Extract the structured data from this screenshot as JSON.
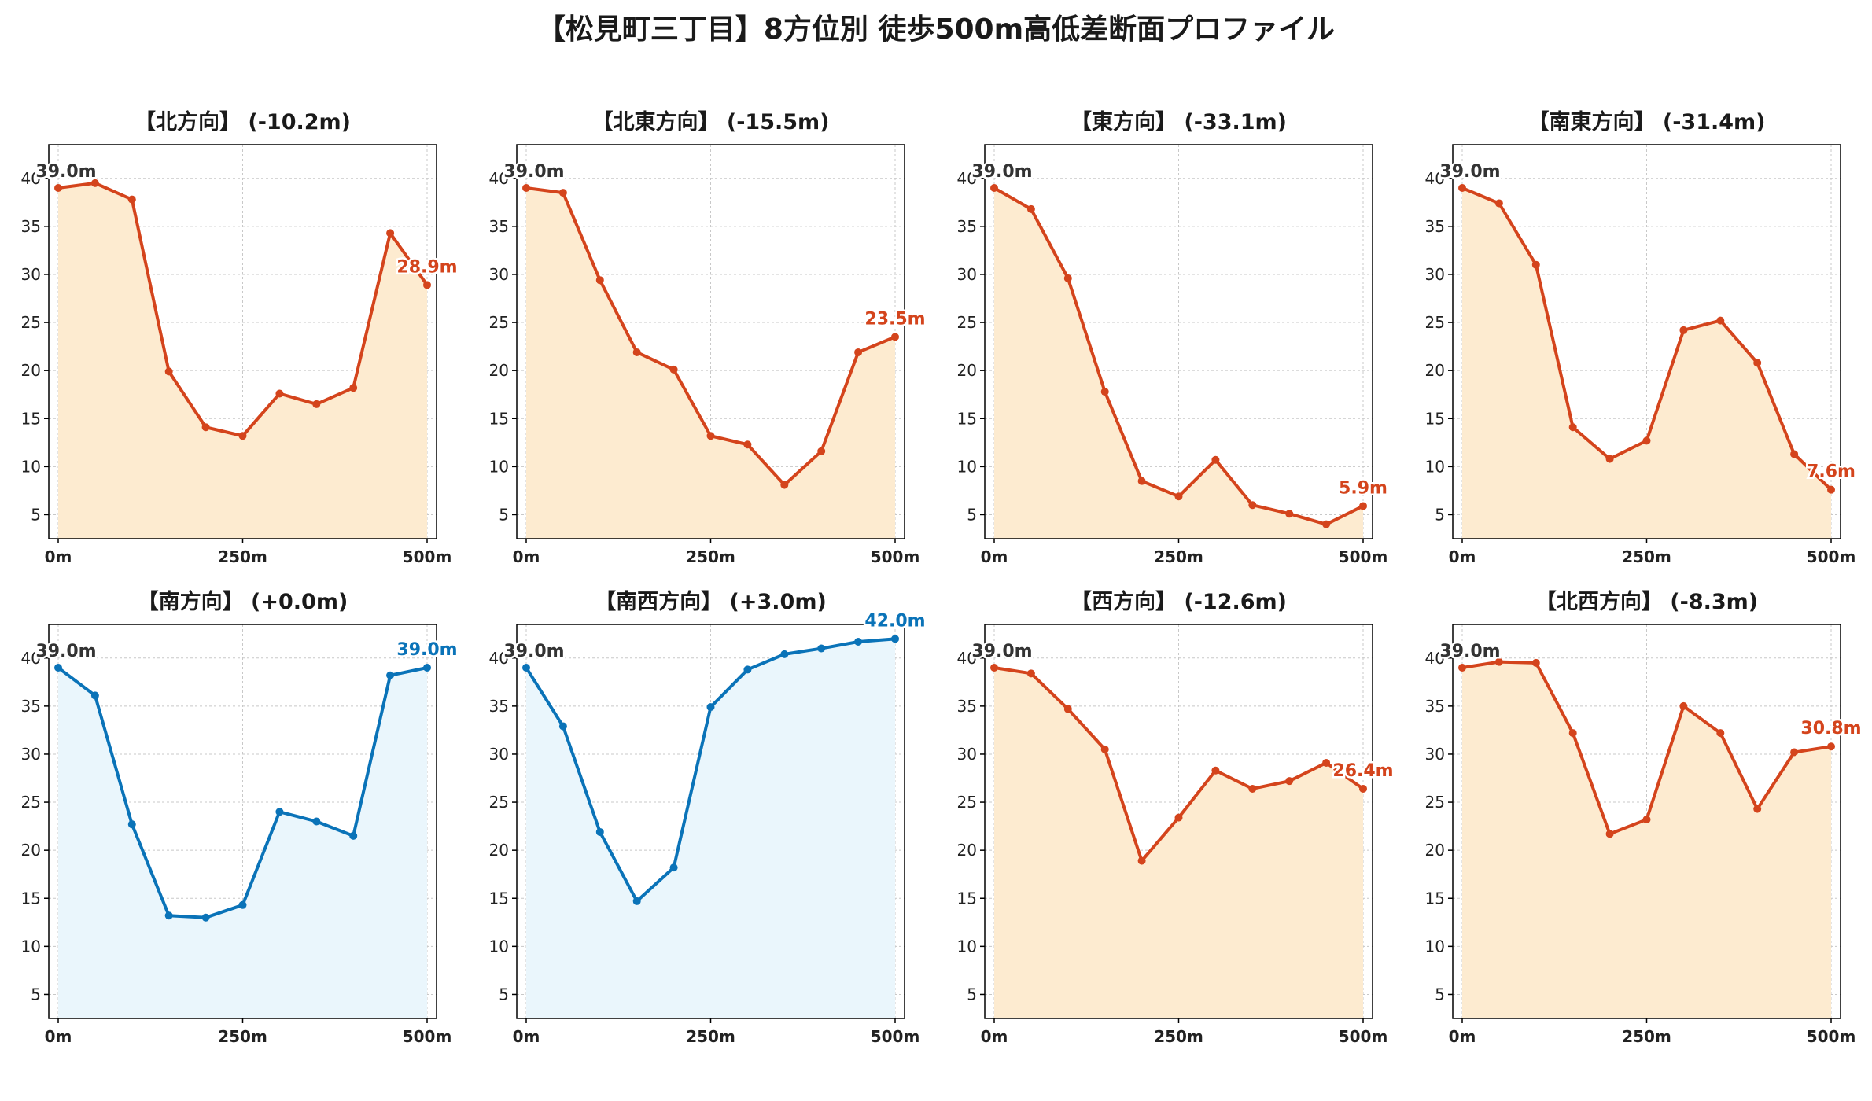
{
  "title": "【松見町三丁目】8方位別 徒歩500m高低差断面プロファイル",
  "colors": {
    "down_line": "#d4441c",
    "down_fill": "#fdebd0",
    "up_line": "#0a73b8",
    "up_fill": "#eaf6fc",
    "start_label": "#333333",
    "grid": "#c8c8c8"
  },
  "chart_data": [
    {
      "type": "line",
      "title": "【北方向】 (-10.2m)",
      "trend": "down",
      "x": [
        0,
        50,
        100,
        150,
        200,
        250,
        300,
        350,
        400,
        450,
        500
      ],
      "y": [
        39.0,
        39.5,
        37.8,
        19.9,
        14.1,
        13.2,
        17.6,
        16.5,
        18.2,
        34.3,
        28.9
      ],
      "xticks": [
        "0m",
        "250m",
        "500m"
      ],
      "yticks": [
        5,
        10,
        15,
        20,
        25,
        30,
        35,
        40
      ],
      "ylim": [
        2.5,
        43.5
      ],
      "start_label": "39.0m",
      "end_label": "28.9m",
      "grid": true
    },
    {
      "type": "line",
      "title": "【北東方向】 (-15.5m)",
      "trend": "down",
      "x": [
        0,
        50,
        100,
        150,
        200,
        250,
        300,
        350,
        400,
        450,
        500
      ],
      "y": [
        39.0,
        38.5,
        29.4,
        21.9,
        20.1,
        13.2,
        12.3,
        8.1,
        11.6,
        21.9,
        23.5
      ],
      "xticks": [
        "0m",
        "250m",
        "500m"
      ],
      "yticks": [
        5,
        10,
        15,
        20,
        25,
        30,
        35,
        40
      ],
      "ylim": [
        2.5,
        43.5
      ],
      "start_label": "39.0m",
      "end_label": "23.5m",
      "grid": true
    },
    {
      "type": "line",
      "title": "【東方向】 (-33.1m)",
      "trend": "down",
      "x": [
        0,
        50,
        100,
        150,
        200,
        250,
        300,
        350,
        400,
        450,
        500
      ],
      "y": [
        39.0,
        36.8,
        29.6,
        17.8,
        8.5,
        6.9,
        10.7,
        6.0,
        5.1,
        4.0,
        5.9
      ],
      "xticks": [
        "0m",
        "250m",
        "500m"
      ],
      "yticks": [
        5,
        10,
        15,
        20,
        25,
        30,
        35,
        40
      ],
      "ylim": [
        2.5,
        43.5
      ],
      "start_label": "39.0m",
      "end_label": "5.9m",
      "grid": true
    },
    {
      "type": "line",
      "title": "【南東方向】 (-31.4m)",
      "trend": "down",
      "x": [
        0,
        50,
        100,
        150,
        200,
        250,
        300,
        350,
        400,
        450,
        500
      ],
      "y": [
        39.0,
        37.4,
        31.0,
        14.1,
        10.8,
        12.7,
        24.2,
        25.2,
        20.8,
        11.3,
        7.6
      ],
      "xticks": [
        "0m",
        "250m",
        "500m"
      ],
      "yticks": [
        5,
        10,
        15,
        20,
        25,
        30,
        35,
        40
      ],
      "ylim": [
        2.5,
        43.5
      ],
      "start_label": "39.0m",
      "end_label": "7.6m",
      "grid": true
    },
    {
      "type": "line",
      "title": "【南方向】 (+0.0m)",
      "trend": "up",
      "x": [
        0,
        50,
        100,
        150,
        200,
        250,
        300,
        350,
        400,
        450,
        500
      ],
      "y": [
        39.0,
        36.1,
        22.7,
        13.2,
        13.0,
        14.3,
        24.0,
        23.0,
        21.5,
        38.2,
        39.0
      ],
      "xticks": [
        "0m",
        "250m",
        "500m"
      ],
      "yticks": [
        5,
        10,
        15,
        20,
        25,
        30,
        35,
        40
      ],
      "ylim": [
        2.5,
        43.5
      ],
      "start_label": "39.0m",
      "end_label": "39.0m",
      "grid": true
    },
    {
      "type": "line",
      "title": "【南西方向】 (+3.0m)",
      "trend": "up",
      "x": [
        0,
        50,
        100,
        150,
        200,
        250,
        300,
        350,
        400,
        450,
        500
      ],
      "y": [
        39.0,
        32.9,
        21.9,
        14.7,
        18.2,
        34.9,
        38.8,
        40.4,
        41.0,
        41.7,
        42.0
      ],
      "xticks": [
        "0m",
        "250m",
        "500m"
      ],
      "yticks": [
        5,
        10,
        15,
        20,
        25,
        30,
        35,
        40
      ],
      "ylim": [
        2.5,
        43.5
      ],
      "start_label": "39.0m",
      "end_label": "42.0m",
      "grid": true
    },
    {
      "type": "line",
      "title": "【西方向】 (-12.6m)",
      "trend": "down",
      "x": [
        0,
        50,
        100,
        150,
        200,
        250,
        300,
        350,
        400,
        450,
        500
      ],
      "y": [
        39.0,
        38.4,
        34.7,
        30.5,
        18.9,
        23.4,
        28.3,
        26.4,
        27.2,
        29.1,
        26.4
      ],
      "xticks": [
        "0m",
        "250m",
        "500m"
      ],
      "yticks": [
        5,
        10,
        15,
        20,
        25,
        30,
        35,
        40
      ],
      "ylim": [
        2.5,
        43.5
      ],
      "start_label": "39.0m",
      "end_label": "26.4m",
      "grid": true
    },
    {
      "type": "line",
      "title": "【北西方向】 (-8.3m)",
      "trend": "down",
      "x": [
        0,
        50,
        100,
        150,
        200,
        250,
        300,
        350,
        400,
        450,
        500
      ],
      "y": [
        39.0,
        39.6,
        39.5,
        32.2,
        21.7,
        23.2,
        35.0,
        32.2,
        24.3,
        30.2,
        30.8
      ],
      "xticks": [
        "0m",
        "250m",
        "500m"
      ],
      "yticks": [
        5,
        10,
        15,
        20,
        25,
        30,
        35,
        40
      ],
      "ylim": [
        2.5,
        43.5
      ],
      "start_label": "39.0m",
      "end_label": "30.8m",
      "grid": true
    }
  ]
}
